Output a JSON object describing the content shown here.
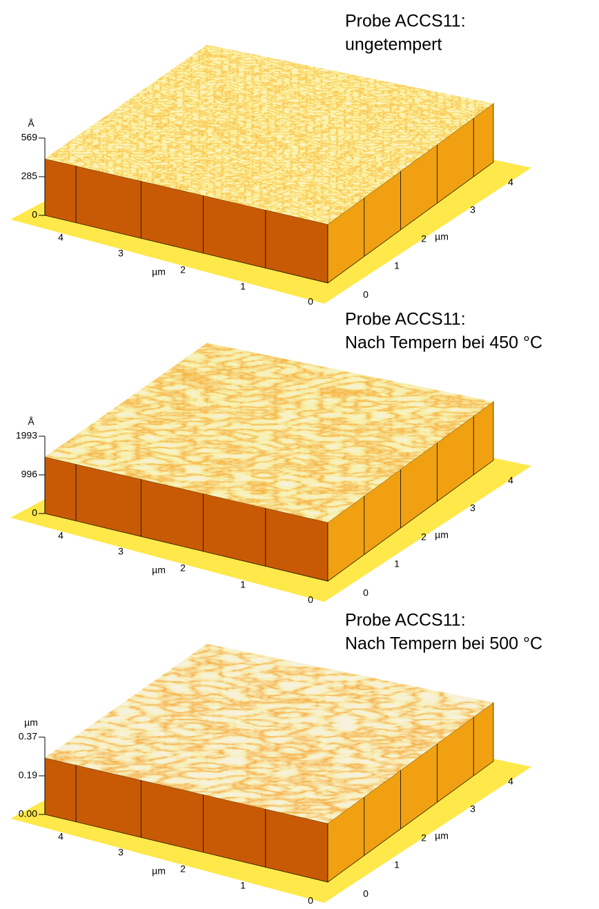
{
  "panels": [
    {
      "title": [
        "Probe ACCS11:",
        "ungetempert"
      ],
      "z_unit": "Å",
      "z_ticks": [
        "569",
        "285",
        "0"
      ],
      "x_ticks": [
        "4",
        "3",
        "2",
        "1",
        "0"
      ],
      "x_unit": "µm",
      "y_ticks": [
        "0",
        "1",
        "2",
        "3",
        "4"
      ],
      "y_unit": "µm"
    },
    {
      "title": [
        "Probe ACCS11:",
        "Nach Tempern bei 450 °C"
      ],
      "z_unit": "Å",
      "z_ticks": [
        "1993",
        "996",
        "0"
      ],
      "x_ticks": [
        "4",
        "3",
        "2",
        "1",
        "0"
      ],
      "x_unit": "µm",
      "y_ticks": [
        "0",
        "1",
        "2",
        "3",
        "4"
      ],
      "y_unit": "µm"
    },
    {
      "title": [
        "Probe ACCS11:",
        "Nach Tempern bei 500 °C"
      ],
      "z_unit": "µm",
      "z_ticks": [
        "0.37",
        "0.19",
        "0.00"
      ],
      "x_ticks": [
        "4",
        "3",
        "2",
        "1",
        "0"
      ],
      "x_unit": "µm",
      "y_ticks": [
        "0",
        "1",
        "2",
        "3",
        "4"
      ],
      "y_unit": "µm"
    }
  ]
}
